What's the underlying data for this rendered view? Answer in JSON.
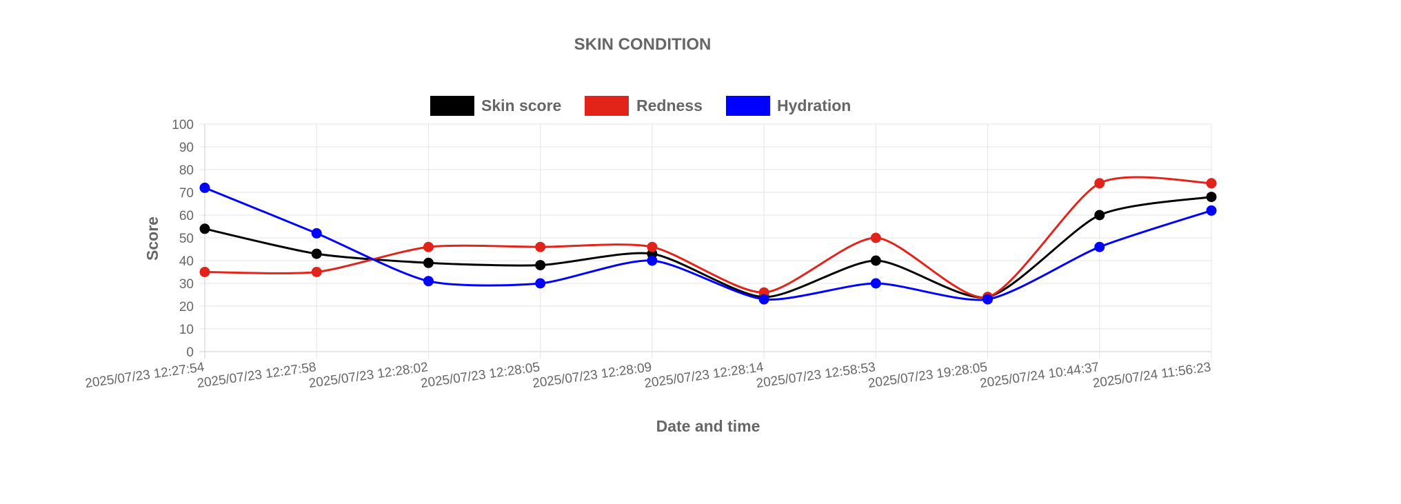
{
  "chart_data": {
    "type": "line",
    "title": "SKIN CONDITION",
    "xlabel": "Date and time",
    "ylabel": "Score",
    "ylim": [
      0,
      100
    ],
    "y_ticks": [
      0,
      10,
      20,
      30,
      40,
      50,
      60,
      70,
      80,
      90,
      100
    ],
    "grid": true,
    "legend_position": "top-center",
    "x": [
      "2025/07/23 12:27:54",
      "2025/07/23 12:27:58",
      "2025/07/23 12:28:02",
      "2025/07/23 12:28:05",
      "2025/07/23 12:28:09",
      "2025/07/23 12:28:14",
      "2025/07/23 12:58:53",
      "2025/07/23 19:28:05",
      "2025/07/24 10:44:37",
      "2025/07/24 11:56:23"
    ],
    "series": [
      {
        "name": "Skin score",
        "color": "#000000",
        "values": [
          54,
          43,
          39,
          38,
          43,
          24,
          40,
          24,
          60,
          68
        ]
      },
      {
        "name": "Redness",
        "color": "#e2231a",
        "values": [
          35,
          35,
          46,
          46,
          46,
          26,
          50,
          24,
          74,
          74
        ]
      },
      {
        "name": "Hydration",
        "color": "#0000ff",
        "values": [
          72,
          52,
          31,
          30,
          40,
          23,
          30,
          23,
          46,
          62
        ]
      }
    ]
  }
}
